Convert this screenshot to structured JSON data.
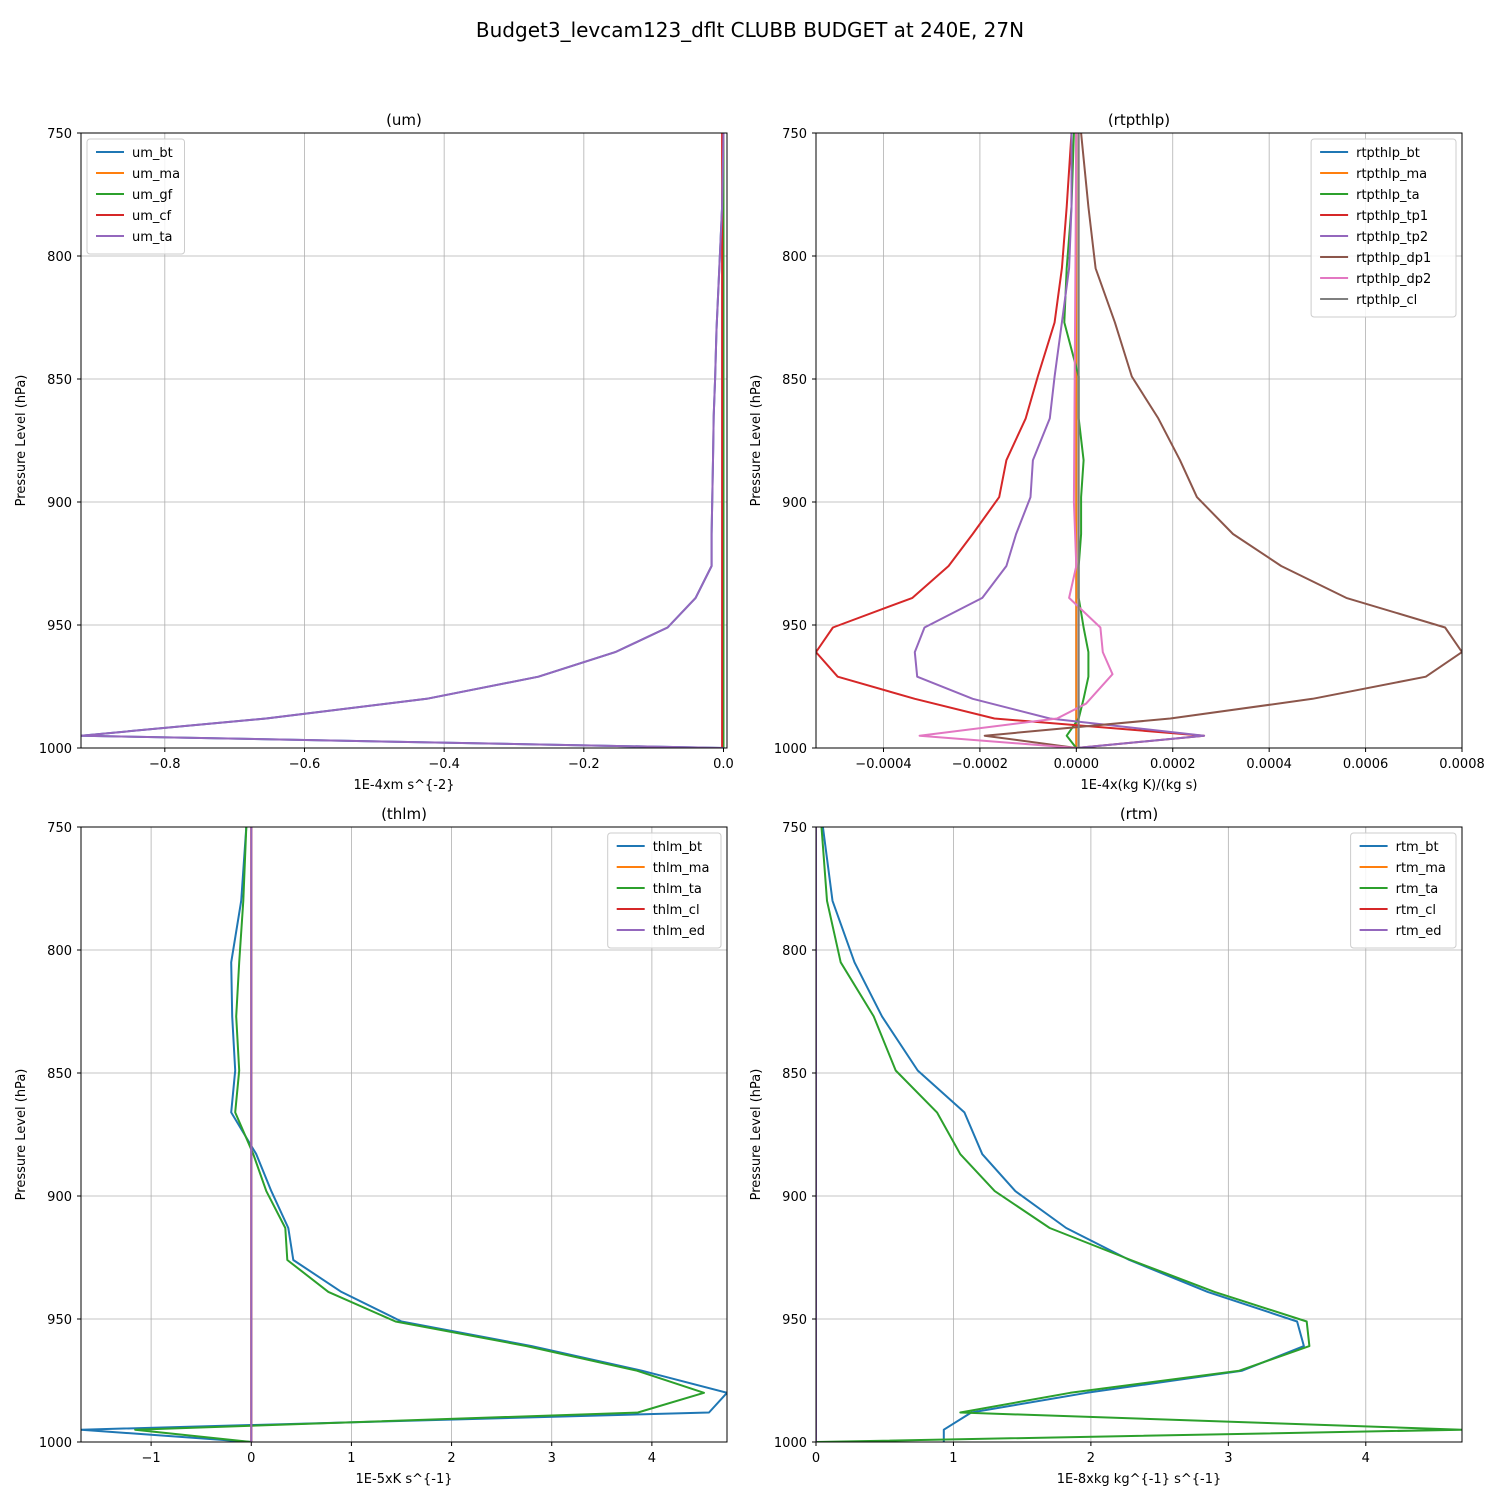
{
  "figure": {
    "title": "Budget3_levcam123_dflt CLUBB BUDGET at 240E, 27N",
    "colors": {
      "C0": "#1f77b4",
      "C1": "#ff7f0e",
      "C2": "#2ca02c",
      "C3": "#d62728",
      "C4": "#9467bd",
      "C5": "#8c564b",
      "C6": "#e377c2",
      "C7": "#7f7f7f",
      "grid": "#b0b0b0"
    }
  },
  "chart_data": [
    {
      "type": "line",
      "title": "(um)",
      "xlabel": "1E-4xm s^{-2}",
      "ylabel": "Pressure Level (hPa)",
      "xlim": [
        -0.92,
        0.005
      ],
      "ylim": [
        1000,
        750
      ],
      "xticks": [
        -0.8,
        -0.6,
        -0.4,
        -0.2,
        0.0
      ],
      "xtick_labels": [
        "−0.8",
        "−0.6",
        "−0.4",
        "−0.2",
        "0.0"
      ],
      "yticks": [
        750,
        800,
        850,
        900,
        950,
        1000
      ],
      "ytick_labels": [
        "750",
        "800",
        "850",
        "900",
        "950",
        "1000"
      ],
      "grid": true,
      "legend_loc": "top-left",
      "series": [
        {
          "name": "um_bt",
          "color": "C0",
          "p": [
            750,
            780,
            805,
            830,
            850,
            865,
            883,
            898,
            913,
            926,
            939,
            951,
            961,
            971,
            980,
            988,
            995,
            1000
          ],
          "x": [
            0,
            -0.002,
            -0.006,
            -0.01,
            -0.012,
            -0.014,
            -0.015,
            -0.016,
            -0.017,
            -0.017,
            -0.04,
            -0.08,
            -0.155,
            -0.265,
            -0.425,
            -0.655,
            -0.92,
            0
          ]
        },
        {
          "name": "um_ma",
          "color": "C1",
          "p": [
            750,
            1000
          ],
          "x": [
            -0.001,
            -0.001
          ]
        },
        {
          "name": "um_gf",
          "color": "C2",
          "p": [
            750,
            1000
          ],
          "x": [
            0,
            0
          ]
        },
        {
          "name": "um_cf",
          "color": "C3",
          "p": [
            750,
            1000
          ],
          "x": [
            -0.002,
            -0.002
          ]
        },
        {
          "name": "um_ta",
          "color": "C4",
          "p": [
            750,
            780,
            805,
            830,
            850,
            865,
            883,
            898,
            913,
            926,
            939,
            951,
            961,
            971,
            980,
            988,
            995,
            1000
          ],
          "x": [
            0,
            -0.002,
            -0.006,
            -0.01,
            -0.012,
            -0.014,
            -0.015,
            -0.016,
            -0.017,
            -0.017,
            -0.04,
            -0.08,
            -0.155,
            -0.265,
            -0.425,
            -0.655,
            -0.92,
            0
          ]
        }
      ]
    },
    {
      "type": "line",
      "title": "(rtpthlp)",
      "xlabel": "1E-4x(kg K)/(kg s)",
      "ylabel": "Pressure Level (hPa)",
      "xlim": [
        -0.00054,
        0.0008
      ],
      "ylim": [
        1000,
        750
      ],
      "xticks": [
        -0.0004,
        -0.0002,
        0.0,
        0.0002,
        0.0004,
        0.0006,
        0.0008
      ],
      "xtick_labels": [
        "−0.0004",
        "−0.0002",
        "0.0000",
        "0.0002",
        "0.0004",
        "0.0006",
        "0.0008"
      ],
      "yticks": [
        750,
        800,
        850,
        900,
        950,
        1000
      ],
      "ytick_labels": [
        "750",
        "800",
        "850",
        "900",
        "950",
        "1000"
      ],
      "grid": true,
      "legend_loc": "top-right",
      "series": [
        {
          "name": "rtpthlp_bt",
          "color": "C0",
          "p": [
            750,
            1000
          ],
          "x": [
            0,
            0
          ]
        },
        {
          "name": "rtpthlp_ma",
          "color": "C1",
          "p": [
            750,
            1000
          ],
          "x": [
            0,
            0
          ]
        },
        {
          "name": "rtpthlp_ta",
          "color": "C2",
          "p": [
            750,
            780,
            805,
            827,
            849,
            866,
            883,
            898,
            913,
            926,
            939,
            951,
            961,
            971,
            980,
            988,
            995,
            1000
          ],
          "x": [
            -5e-06,
            -1e-05,
            -2e-05,
            -2.5e-05,
            5e-06,
            5e-06,
            1.5e-05,
            1e-05,
            1e-05,
            5e-06,
            5e-06,
            1.5e-05,
            2.5e-05,
            2.5e-05,
            1.5e-05,
            5e-06,
            -2e-05,
            0
          ]
        },
        {
          "name": "rtpthlp_tp1",
          "color": "C3",
          "p": [
            750,
            780,
            805,
            827,
            849,
            866,
            883,
            898,
            913,
            926,
            939,
            951,
            961,
            971,
            980,
            988,
            995,
            1000
          ],
          "x": [
            -1e-05,
            -2e-05,
            -3e-05,
            -4.5e-05,
            -8e-05,
            -0.000105,
            -0.000145,
            -0.00016,
            -0.000215,
            -0.000265,
            -0.00034,
            -0.000505,
            -0.00054,
            -0.000495,
            -0.000335,
            -0.00017,
            0.000265,
            0
          ]
        },
        {
          "name": "rtpthlp_tp2",
          "color": "C4",
          "p": [
            750,
            780,
            805,
            827,
            849,
            866,
            883,
            898,
            913,
            926,
            939,
            951,
            961,
            971,
            980,
            988,
            995,
            1000
          ],
          "x": [
            -1e-05,
            -1e-05,
            -1.5e-05,
            -3e-05,
            -4.5e-05,
            -5.5e-05,
            -9e-05,
            -9.5e-05,
            -0.000125,
            -0.000145,
            -0.000195,
            -0.000315,
            -0.000335,
            -0.00033,
            -0.000215,
            -5.5e-05,
            0.000265,
            0
          ]
        },
        {
          "name": "rtpthlp_dp1",
          "color": "C5",
          "p": [
            750,
            780,
            805,
            827,
            849,
            866,
            883,
            898,
            913,
            926,
            939,
            951,
            961,
            971,
            980,
            988,
            995,
            1000
          ],
          "x": [
            1e-05,
            2.5e-05,
            4e-05,
            8e-05,
            0.000115,
            0.00017,
            0.000215,
            0.00025,
            0.000325,
            0.000425,
            0.00056,
            0.000765,
            0.0008,
            0.000725,
            0.00049,
            0.000195,
            -0.00019,
            0
          ]
        },
        {
          "name": "rtpthlp_dp2",
          "color": "C6",
          "p": [
            750,
            900,
            926,
            939,
            951,
            961,
            970,
            982,
            988,
            995,
            1000
          ],
          "x": [
            0,
            -5e-06,
            0,
            -1.5e-05,
            5e-05,
            5.5e-05,
            7.5e-05,
            2e-05,
            -4e-05,
            -0.000325,
            0
          ]
        },
        {
          "name": "rtpthlp_cl",
          "color": "C7",
          "p": [
            750,
            1000
          ],
          "x": [
            5e-06,
            5e-06
          ]
        }
      ]
    },
    {
      "type": "line",
      "title": "(thlm)",
      "xlabel": "1E-5xK s^{-1}",
      "ylabel": "Pressure Level (hPa)",
      "xlim": [
        -1.7,
        4.75
      ],
      "ylim": [
        1000,
        750
      ],
      "xticks": [
        -1,
        0,
        1,
        2,
        3,
        4
      ],
      "xtick_labels": [
        "−1",
        "0",
        "1",
        "2",
        "3",
        "4"
      ],
      "yticks": [
        750,
        800,
        850,
        900,
        950,
        1000
      ],
      "ytick_labels": [
        "750",
        "800",
        "850",
        "900",
        "950",
        "1000"
      ],
      "grid": true,
      "legend_loc": "top-right",
      "series": [
        {
          "name": "thlm_bt",
          "color": "C0",
          "p": [
            750,
            780,
            805,
            827,
            849,
            866,
            883,
            898,
            913,
            926,
            939,
            951,
            961,
            971,
            980,
            988,
            995,
            1000
          ],
          "x": [
            -0.05,
            -0.1,
            -0.2,
            -0.19,
            -0.16,
            -0.2,
            0.05,
            0.2,
            0.37,
            0.42,
            0.9,
            1.5,
            2.8,
            3.9,
            4.75,
            4.57,
            -1.7,
            0
          ]
        },
        {
          "name": "thlm_ma",
          "color": "C1",
          "p": [
            750,
            1000
          ],
          "x": [
            0,
            0
          ]
        },
        {
          "name": "thlm_ta",
          "color": "C2",
          "p": [
            750,
            780,
            805,
            827,
            849,
            866,
            883,
            898,
            913,
            926,
            939,
            951,
            961,
            971,
            980,
            988,
            995,
            1000
          ],
          "x": [
            -0.05,
            -0.08,
            -0.12,
            -0.15,
            -0.12,
            -0.16,
            0.02,
            0.15,
            0.34,
            0.36,
            0.77,
            1.44,
            2.75,
            3.85,
            4.52,
            3.86,
            -1.16,
            0
          ]
        },
        {
          "name": "thlm_cl",
          "color": "C3",
          "p": [
            750,
            1000
          ],
          "x": [
            0,
            0
          ]
        },
        {
          "name": "thlm_ed",
          "color": "C4",
          "p": [
            750,
            1000
          ],
          "x": [
            0,
            0
          ]
        }
      ]
    },
    {
      "type": "line",
      "title": "(rtm)",
      "xlabel": "1E-8xkg kg^{-1} s^{-1}",
      "ylabel": "Pressure Level (hPa)",
      "xlim": [
        0,
        4.7
      ],
      "ylim": [
        1000,
        750
      ],
      "xticks": [
        0,
        1,
        2,
        3,
        4
      ],
      "xtick_labels": [
        "0",
        "1",
        "2",
        "3",
        "4"
      ],
      "yticks": [
        750,
        800,
        850,
        900,
        950,
        1000
      ],
      "ytick_labels": [
        "750",
        "800",
        "850",
        "900",
        "950",
        "1000"
      ],
      "grid": true,
      "legend_loc": "top-right",
      "series": [
        {
          "name": "rtm_bt",
          "color": "C0",
          "p": [
            750,
            780,
            805,
            827,
            849,
            866,
            883,
            898,
            913,
            926,
            939,
            951,
            961,
            971,
            980,
            988,
            995,
            1000
          ],
          "x": [
            0.05,
            0.12,
            0.28,
            0.48,
            0.74,
            1.08,
            1.21,
            1.45,
            1.82,
            2.28,
            2.85,
            3.5,
            3.55,
            3.1,
            1.97,
            1.13,
            0.93,
            0.93
          ]
        },
        {
          "name": "rtm_ma",
          "color": "C1",
          "p": [
            750,
            1000
          ],
          "x": [
            0,
            0
          ]
        },
        {
          "name": "rtm_ta",
          "color": "C2",
          "p": [
            750,
            780,
            805,
            827,
            849,
            866,
            883,
            898,
            913,
            926,
            939,
            951,
            961,
            971,
            980,
            988,
            995,
            1000
          ],
          "x": [
            0.04,
            0.08,
            0.18,
            0.42,
            0.58,
            0.88,
            1.05,
            1.3,
            1.7,
            2.29,
            2.9,
            3.57,
            3.59,
            3.08,
            1.85,
            1.05,
            4.7,
            0
          ]
        },
        {
          "name": "rtm_cl",
          "color": "C3",
          "p": [
            750,
            1000
          ],
          "x": [
            0,
            0
          ]
        },
        {
          "name": "rtm_ed",
          "color": "C4",
          "p": [
            750,
            1000
          ],
          "x": [
            0,
            0
          ]
        }
      ]
    }
  ]
}
